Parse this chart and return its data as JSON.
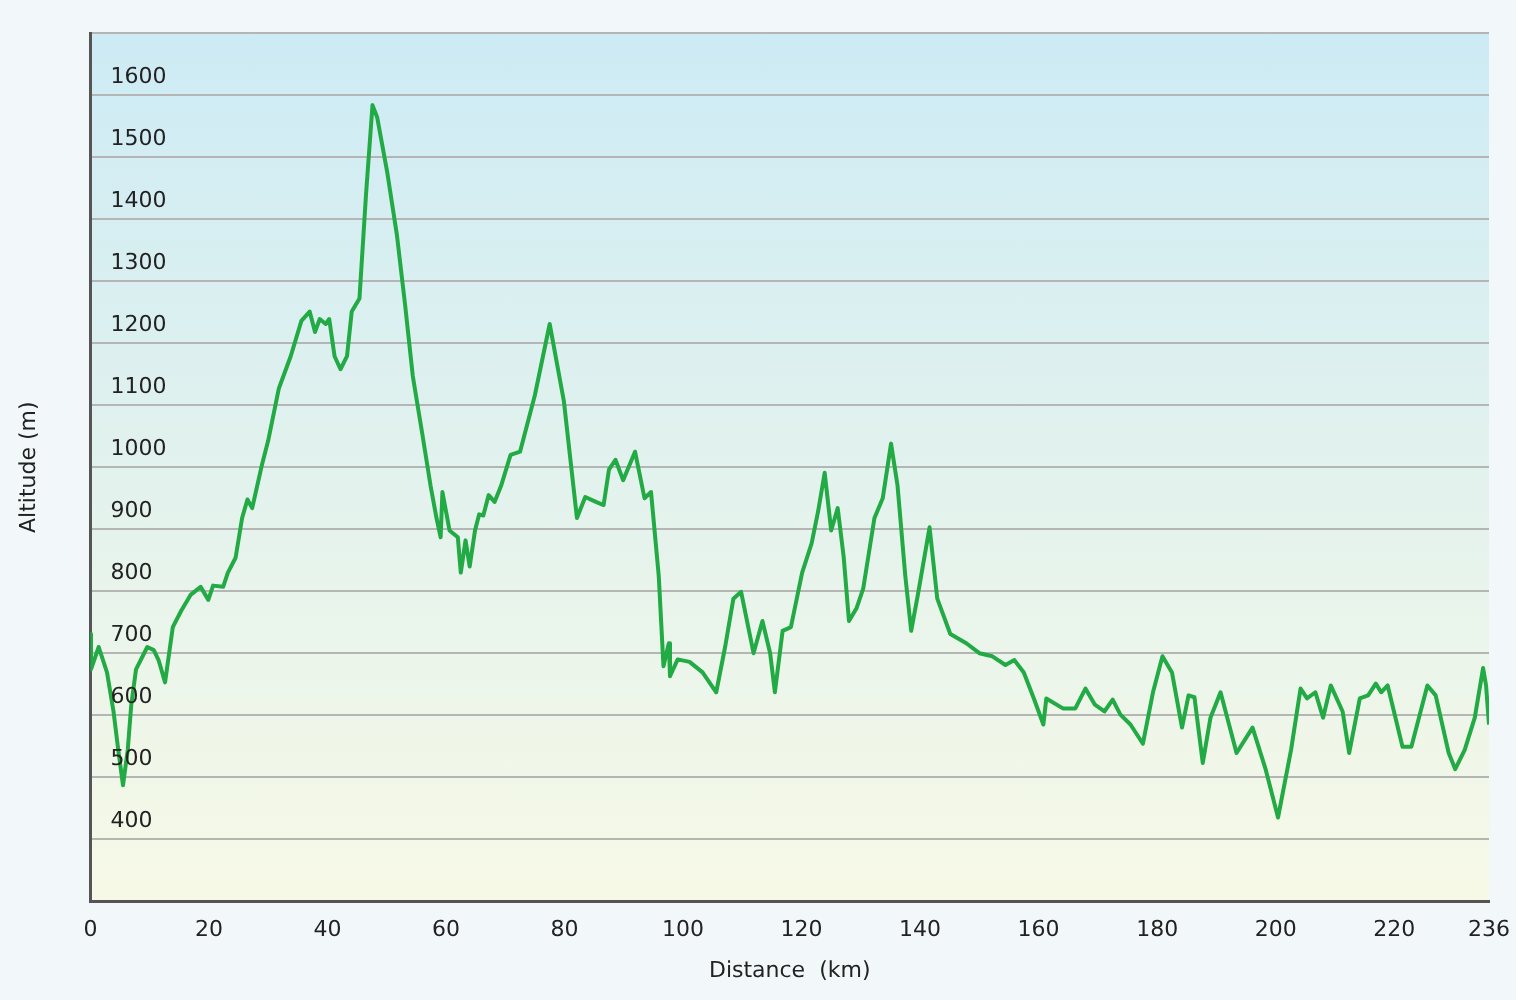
{
  "chart_data": {
    "type": "line",
    "xlabel": "Distance  (km)",
    "ylabel": "Altitude (m)",
    "xlim": [
      0,
      236
    ],
    "ylim": [
      300,
      1700
    ],
    "xticks": [
      0,
      20,
      40,
      60,
      80,
      100,
      120,
      140,
      160,
      180,
      200,
      220,
      236
    ],
    "yticks": [
      {
        "value": 300,
        "label": null
      },
      400,
      500,
      600,
      700,
      800,
      900,
      1000,
      1100,
      1200,
      1300,
      1400,
      1500,
      1600,
      {
        "value": 1700,
        "label": null
      }
    ],
    "grid": "y",
    "legend": false,
    "marker": "none",
    "line_style": "solid",
    "x": [
      0,
      0.1,
      1.4,
      2.8,
      3.9,
      4.7,
      5.5,
      6.3,
      6.9,
      7.7,
      9.6,
      10.7,
      11.5,
      12.6,
      13.9,
      15.3,
      16.9,
      18.6,
      19.9,
      20.7,
      22.4,
      23.2,
      24.5,
      25.6,
      26.5,
      27.3,
      28.9,
      30.0,
      31.8,
      33.8,
      35.6,
      37.0,
      37.9,
      38.7,
      39.7,
      40.3,
      41.2,
      42.2,
      43.3,
      44.1,
      45.4,
      46.5,
      47.6,
      48.4,
      50.1,
      51.7,
      53.1,
      54.4,
      56.0,
      57.4,
      58.4,
      59.1,
      59.4,
      60.0,
      60.6,
      62.0,
      62.5,
      63.3,
      64.0,
      64.9,
      65.6,
      66.3,
      67.2,
      68.2,
      69.3,
      70.9,
      72.5,
      75.0,
      77.5,
      79.9,
      82.1,
      83.5,
      85.3,
      86.6,
      87.5,
      88.6,
      89.9,
      91.9,
      93.5,
      94.6,
      95.9,
      96.7,
      97.6,
      97.8,
      99.1,
      101.1,
      103.3,
      105.6,
      107.1,
      108.5,
      109.8,
      111.9,
      113.4,
      114.7,
      115.5,
      116.8,
      118.2,
      120.1,
      121.7,
      122.8,
      123.9,
      125.0,
      126.1,
      127.1,
      128.0,
      129.3,
      130.4,
      132.3,
      133.7,
      135.1,
      136.2,
      137.5,
      138.5,
      139.6,
      141.6,
      142.9,
      145.1,
      147.8,
      150.0,
      152.2,
      154.4,
      155.9,
      157.5,
      159.2,
      160.8,
      161.3,
      164.1,
      166.2,
      167.9,
      169.5,
      171.1,
      172.5,
      173.8,
      175.5,
      177.6,
      179.3,
      180.9,
      182.5,
      184.2,
      185.3,
      186.3,
      187.7,
      189.0,
      190.7,
      193.4,
      196.1,
      198.3,
      200.4,
      202.6,
      204.2,
      205.3,
      206.7,
      208.0,
      209.3,
      211.3,
      212.4,
      214.2,
      215.6,
      216.9,
      217.8,
      218.9,
      221.4,
      222.9,
      225.6,
      227.0,
      229.2,
      230.3,
      231.9,
      233.6,
      235.0,
      235.5,
      236
    ],
    "series": [
      {
        "color": "#22aa44",
        "values": [
          731,
          674,
          710,
          669,
          606,
          544,
          487,
          544,
          617,
          674,
          710,
          705,
          689,
          653,
          742,
          768,
          794,
          807,
          786,
          809,
          807,
          830,
          854,
          918,
          948,
          934,
          1002,
          1043,
          1127,
          1179,
          1236,
          1251,
          1218,
          1239,
          1231,
          1239,
          1179,
          1158,
          1179,
          1251,
          1272,
          1439,
          1584,
          1564,
          1475,
          1376,
          1262,
          1147,
          1054,
          970,
          918,
          887,
          960,
          929,
          898,
          887,
          830,
          882,
          840,
          898,
          924,
          922,
          955,
          944,
          970,
          1020,
          1025,
          1116,
          1231,
          1106,
          918,
          952,
          944,
          939,
          996,
          1012,
          979,
          1025,
          950,
          960,
          825,
          679,
          716,
          663,
          690,
          686,
          669,
          637,
          710,
          788,
          799,
          700,
          752,
          700,
          637,
          736,
          742,
          830,
          877,
          929,
          991,
          898,
          934,
          856,
          752,
          773,
          804,
          918,
          950,
          1038,
          970,
          825,
          736,
          793,
          903,
          788,
          731,
          716,
          700,
          695,
          681,
          689,
          669,
          627,
          585,
          627,
          611,
          611,
          643,
          617,
          606,
          625,
          601,
          585,
          554,
          637,
          695,
          669,
          580,
          632,
          629,
          523,
          596,
          637,
          539,
          580,
          513,
          435,
          544,
          643,
          627,
          637,
          596,
          648,
          606,
          539,
          627,
          632,
          651,
          637,
          648,
          549,
          549,
          648,
          632,
          539,
          513,
          544,
          596,
          676,
          648,
          585
        ]
      }
    ]
  }
}
